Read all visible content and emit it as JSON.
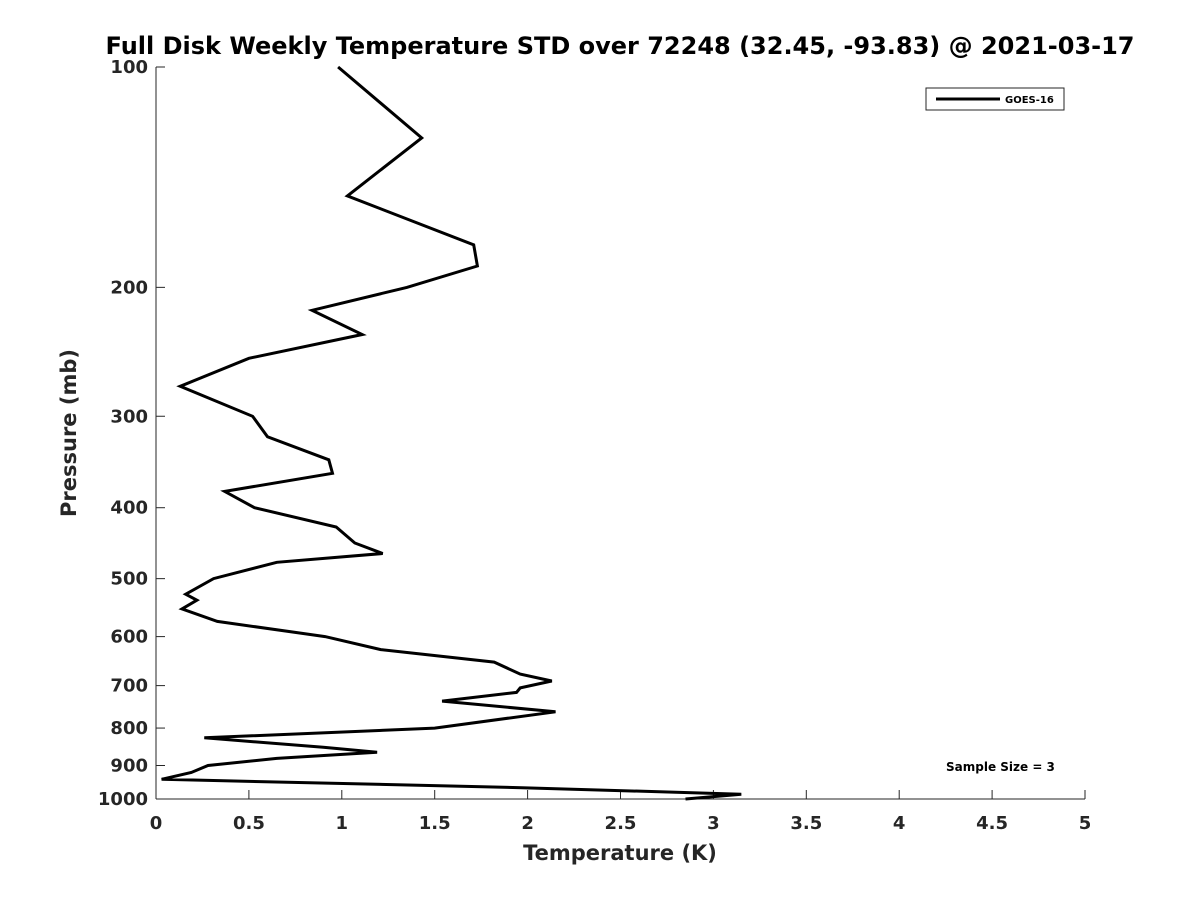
{
  "chart_data": {
    "type": "line",
    "title": "Full Disk Weekly Temperature STD over 72248 (32.45, -93.83) @ 2021-03-17",
    "xlabel": "Temperature (K)",
    "ylabel": "Pressure (mb)",
    "xlim": [
      0,
      5
    ],
    "ylim": [
      100,
      1000
    ],
    "y_scale": "log",
    "y_reversed": true,
    "x_ticks": [
      "0",
      "0.5",
      "1",
      "1.5",
      "2",
      "2.5",
      "3",
      "3.5",
      "4",
      "4.5",
      "5"
    ],
    "y_ticks": [
      "100",
      "200",
      "300",
      "400",
      "500",
      "600",
      "700",
      "800",
      "900",
      "1000"
    ],
    "grid": false,
    "legend_position": "top-right",
    "annotation": "Sample Size = 3",
    "series": [
      {
        "name": "GOES-16",
        "color": "#000000",
        "points": [
          [
            0.98,
            100
          ],
          [
            1.43,
            125
          ],
          [
            1.03,
            150
          ],
          [
            1.71,
            175
          ],
          [
            1.73,
            187
          ],
          [
            1.35,
            200
          ],
          [
            0.84,
            215
          ],
          [
            1.11,
            232
          ],
          [
            0.5,
            250
          ],
          [
            0.13,
            273
          ],
          [
            0.52,
            300
          ],
          [
            0.6,
            320
          ],
          [
            0.93,
            344
          ],
          [
            0.95,
            359
          ],
          [
            0.37,
            380
          ],
          [
            0.53,
            400
          ],
          [
            0.97,
            425
          ],
          [
            1.07,
            447
          ],
          [
            1.22,
            462
          ],
          [
            0.65,
            475
          ],
          [
            0.31,
            500
          ],
          [
            0.16,
            525
          ],
          [
            0.22,
            535
          ],
          [
            0.14,
            550
          ],
          [
            0.33,
            572
          ],
          [
            0.91,
            600
          ],
          [
            1.21,
            625
          ],
          [
            1.82,
            650
          ],
          [
            1.96,
            675
          ],
          [
            2.13,
            690
          ],
          [
            1.96,
            705
          ],
          [
            1.94,
            715
          ],
          [
            1.54,
            735
          ],
          [
            2.15,
            760
          ],
          [
            1.5,
            800
          ],
          [
            0.26,
            825
          ],
          [
            0.9,
            850
          ],
          [
            1.19,
            863
          ],
          [
            0.65,
            880
          ],
          [
            0.28,
            900
          ],
          [
            0.19,
            920
          ],
          [
            0.03,
            940
          ],
          [
            1.97,
            965
          ],
          [
            3.15,
            985
          ],
          [
            2.85,
            1000
          ]
        ]
      }
    ]
  }
}
